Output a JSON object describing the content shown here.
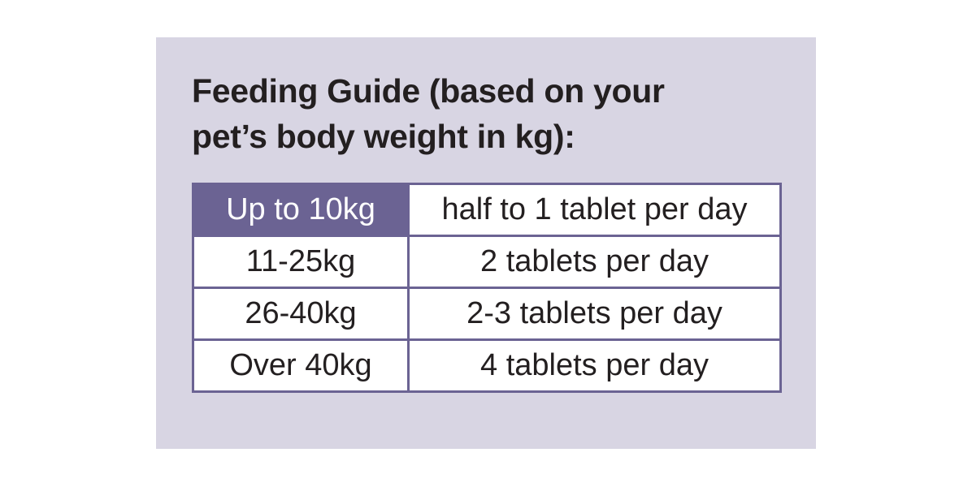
{
  "heading": {
    "line1": "Feeding Guide (based on your",
    "line2": "pet’s body weight in kg):"
  },
  "colors": {
    "panel_background": "#d8d5e3",
    "table_border": "#6b6393",
    "highlight_cell": "#6b6393",
    "text": "#231f20"
  },
  "table": {
    "rows": [
      {
        "weight": "Up to 10kg",
        "dosage": "half to 1 tablet per day"
      },
      {
        "weight": "11-25kg",
        "dosage": "2 tablets per day"
      },
      {
        "weight": "26-40kg",
        "dosage": "2-3 tablets per day"
      },
      {
        "weight": "Over 40kg",
        "dosage": "4 tablets per day"
      }
    ]
  }
}
